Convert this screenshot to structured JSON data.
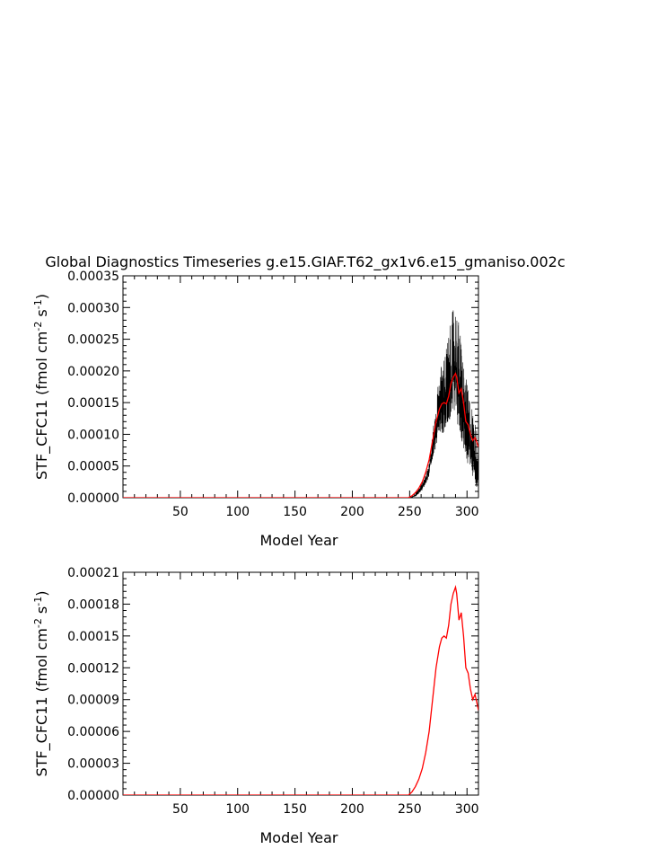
{
  "title": "Global Diagnostics Timeseries g.e15.GIAF.T62_gx1v6.e15_gmaniso.002c",
  "chart_data": [
    {
      "type": "line",
      "xlabel": "Model Year",
      "ylabel_main": "STF_CFC11  (fmol cm",
      "ylabel_exp1": "-2",
      "ylabel_mid": " s",
      "ylabel_exp2": "-1",
      "ylabel_end": ")",
      "xlim": [
        0,
        310
      ],
      "ylim": [
        0,
        0.00035
      ],
      "xticks": [
        50,
        100,
        150,
        200,
        250,
        300
      ],
      "xtick_labels": [
        "50",
        "100",
        "150",
        "200",
        "250",
        "300"
      ],
      "yticks": [
        0,
        5e-05,
        0.0001,
        0.00015,
        0.0002,
        0.00025,
        0.0003,
        0.00035
      ],
      "ytick_labels": [
        "0.00000",
        "0.00005",
        "0.00010",
        "0.00015",
        "0.00020",
        "0.00025",
        "0.00030",
        "0.00035"
      ],
      "series": [
        {
          "color": "#000000",
          "style": "monthly-band",
          "x": [
            0,
            249,
            252,
            255,
            258,
            261,
            264,
            267,
            270,
            273,
            276,
            279,
            282,
            285,
            288,
            290,
            292,
            295,
            298,
            301,
            304,
            307,
            310
          ],
          "y_low": [
            0,
            0,
            0,
            2e-06,
            6e-06,
            1.2e-05,
            2e-05,
            3.5e-05,
            6e-05,
            8e-05,
            0.0001,
            0.0001,
            0.000105,
            0.00012,
            0.00014,
            0.000135,
            0.00011,
            9e-05,
            7e-05,
            5e-05,
            3e-05,
            2e-05,
            1e-05
          ],
          "y_high": [
            0,
            0,
            2e-06,
            8e-06,
            1.5e-05,
            2.5e-05,
            4e-05,
            6e-05,
            0.0001,
            0.00015,
            0.0002,
            0.00022,
            0.00024,
            0.00027,
            0.0003,
            0.000305,
            0.00029,
            0.00025,
            0.0002,
            0.00017,
            0.00015,
            0.00012,
            0.0001
          ]
        },
        {
          "color": "#ff0000",
          "x": [
            0,
            249,
            252,
            255,
            258,
            261,
            264,
            267,
            270,
            273,
            276,
            278,
            280,
            282,
            284,
            286,
            288,
            290,
            291,
            293,
            295,
            297,
            299,
            301,
            303,
            305,
            307,
            309,
            310
          ],
          "y": [
            0,
            0,
            3e-06,
            8e-06,
            1.5e-05,
            2.5e-05,
            4e-05,
            6e-05,
            9e-05,
            0.00012,
            0.00014,
            0.000148,
            0.00015,
            0.000148,
            0.00016,
            0.00018,
            0.00019,
            0.000196,
            0.00019,
            0.000165,
            0.000172,
            0.00015,
            0.00012,
            0.000115,
            0.0001,
            9e-05,
            9.5e-05,
            8.5e-05,
            8e-05
          ]
        }
      ]
    },
    {
      "type": "line",
      "xlabel": "Model Year",
      "ylabel_main": "STF_CFC11  (fmol cm",
      "ylabel_exp1": "-2",
      "ylabel_mid": " s",
      "ylabel_exp2": "-1",
      "ylabel_end": ")",
      "xlim": [
        0,
        310
      ],
      "ylim": [
        0,
        0.00021
      ],
      "xticks": [
        50,
        100,
        150,
        200,
        250,
        300
      ],
      "xtick_labels": [
        "50",
        "100",
        "150",
        "200",
        "250",
        "300"
      ],
      "yticks": [
        0,
        3e-05,
        6e-05,
        9e-05,
        0.00012,
        0.00015,
        0.00018,
        0.00021
      ],
      "ytick_labels": [
        "0.00000",
        "0.00003",
        "0.00006",
        "0.00009",
        "0.00012",
        "0.00015",
        "0.00018",
        "0.00021"
      ],
      "series": [
        {
          "color": "#ff0000",
          "x": [
            0,
            249,
            252,
            255,
            258,
            261,
            264,
            267,
            270,
            273,
            276,
            278,
            280,
            282,
            284,
            286,
            288,
            290,
            291,
            293,
            295,
            297,
            299,
            301,
            303,
            305,
            307,
            309,
            310
          ],
          "y": [
            0,
            0,
            3e-06,
            8e-06,
            1.5e-05,
            2.5e-05,
            4e-05,
            6e-05,
            9e-05,
            0.00012,
            0.00014,
            0.000148,
            0.00015,
            0.000148,
            0.00016,
            0.00018,
            0.00019,
            0.000196,
            0.00019,
            0.000165,
            0.000172,
            0.00015,
            0.00012,
            0.000115,
            0.0001,
            9e-05,
            9.5e-05,
            8.5e-05,
            8e-05
          ]
        }
      ]
    }
  ]
}
